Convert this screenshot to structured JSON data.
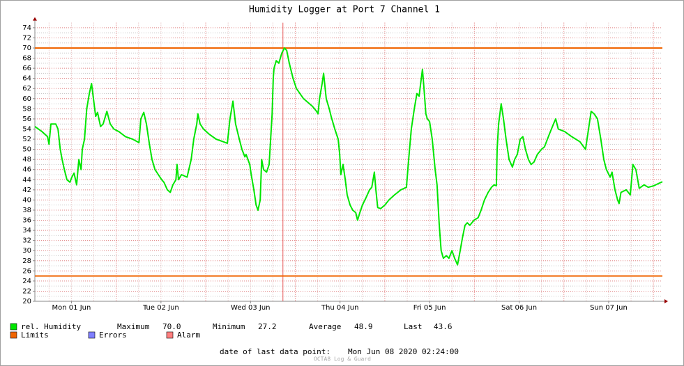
{
  "chart_data": {
    "type": "line",
    "title": "Humidity Logger at Port 7 Channel 1",
    "x": [
      2.2,
      4.1,
      5.6,
      6.0,
      6.5,
      7.8,
      8.4,
      9.0,
      9.5,
      10.1,
      10.8,
      11.6,
      12.1,
      12.7,
      13.4,
      14.0,
      14.6,
      14.9,
      15.5,
      16.1,
      16.8,
      17.4,
      17.9,
      18.5,
      19.0,
      19.8,
      20.5,
      21.5,
      22.4,
      23.4,
      24.7,
      26.5,
      28.4,
      29.7,
      30.1,
      30.6,
      31.4,
      32.1,
      32.9,
      33.6,
      34.4,
      35.3,
      36.2,
      36.8,
      37.7,
      38.5,
      39.2,
      40.0,
      40.3,
      40.7,
      41.5,
      43.0,
      44.1,
      44.8,
      45.6,
      45.9,
      46.5,
      47.4,
      48.9,
      50.8,
      52.7,
      53.8,
      54.5,
      55.3,
      56.0,
      57.0,
      57.7,
      58.5,
      58.8,
      59.8,
      60.2,
      60.9,
      61.5,
      62.0,
      62.6,
      63.0,
      63.5,
      64.3,
      65.0,
      65.8,
      66.1,
      66.3,
      66.9,
      67.6,
      68.4,
      69.1,
      69.7,
      70.4,
      71.4,
      72.3,
      74.2,
      76.6,
      77.7,
      78.1,
      78.5,
      79.2,
      79.6,
      80.3,
      81.1,
      81.6,
      82.6,
      83.5,
      83.9,
      84.2,
      84.8,
      85.4,
      85.9,
      86.7,
      87.4,
      88.2,
      88.7,
      89.3,
      90.0,
      91.0,
      91.9,
      92.5,
      93.2,
      93.6,
      94.1,
      94.9,
      96.0,
      97.1,
      98.6,
      100.3,
      101.8,
      102.4,
      103.1,
      103.9,
      104.6,
      105.2,
      105.6,
      106.1,
      106.5,
      107.0,
      107.4,
      108.0,
      108.7,
      109.5,
      110.0,
      110.6,
      111.1,
      111.7,
      112.5,
      113.2,
      114.0,
      114.7,
      115.5,
      116.2,
      116.8,
      117.5,
      118.1,
      118.8,
      119.9,
      121.0,
      121.8,
      122.7,
      123.7,
      124.6,
      125.3,
      125.9,
      126.1,
      126.5,
      127.2,
      127.8,
      128.5,
      129.3,
      130.2,
      130.8,
      131.5,
      132.3,
      133.0,
      133.7,
      134.5,
      135.2,
      136.0,
      136.9,
      138.0,
      138.8,
      140.1,
      141.2,
      141.8,
      142.5,
      144.2,
      146.1,
      148.3,
      149.8,
      151.3,
      152.1,
      153.0,
      153.9,
      154.7,
      155.4,
      156.4,
      156.9,
      157.7,
      158.4,
      158.8,
      159.3,
      160.7,
      161.8,
      162.5,
      163.3,
      164.2,
      165.5,
      166.6,
      168.1,
      169.2,
      170.4
    ],
    "series": [
      {
        "name": "rel. Humidity",
        "color": "#00e600",
        "values": [
          54.5,
          53.5,
          52.5,
          51,
          55,
          55,
          54,
          50,
          48,
          46,
          44,
          43.5,
          44.5,
          45.3,
          43,
          48,
          46,
          50,
          52,
          58,
          61,
          63,
          60,
          56.5,
          57.3,
          54.5,
          55,
          57.5,
          55,
          54,
          53.5,
          52.5,
          52,
          51.5,
          51.3,
          56,
          57.3,
          55,
          51,
          48,
          46,
          45,
          44,
          43.5,
          42,
          41.5,
          43,
          44,
          47,
          44,
          45,
          44.5,
          48,
          52,
          55,
          57,
          55,
          54,
          53,
          52,
          51.5,
          51.2,
          56,
          59.5,
          55,
          52,
          50,
          48.5,
          49,
          47,
          45,
          42,
          39,
          38,
          40,
          48,
          46,
          45.5,
          47,
          57,
          64,
          66,
          67.5,
          67,
          69,
          70,
          69.5,
          67,
          64,
          62,
          60,
          58.5,
          57.5,
          57,
          60,
          63,
          65,
          60,
          58,
          56.5,
          54,
          52,
          49,
          45,
          47,
          44,
          41,
          39,
          38,
          37.5,
          36,
          37.5,
          39,
          40.5,
          42,
          42.5,
          45.5,
          42,
          38.5,
          38.3,
          39,
          40,
          41,
          42,
          42.5,
          48,
          54,
          58,
          61,
          60.5,
          63,
          65.8,
          62,
          57,
          56,
          55.5,
          52,
          46,
          43,
          35,
          30,
          28.5,
          29,
          28.5,
          30,
          28.5,
          27.2,
          30,
          32.5,
          35,
          35.5,
          35,
          36,
          36.5,
          38,
          40,
          41.5,
          42.5,
          43,
          42.8,
          50,
          55,
          59,
          56,
          52,
          48,
          46.5,
          48,
          49,
          52,
          52.5,
          50,
          48,
          47,
          47.5,
          49,
          50,
          50.5,
          53,
          55,
          56,
          54,
          53.5,
          52.5,
          51.5,
          50,
          57.5,
          57,
          56,
          52,
          48,
          46,
          44.5,
          45.5,
          42,
          40,
          39.3,
          41.5,
          42,
          41,
          47,
          46,
          42.3,
          43,
          42.5,
          42.8,
          43.2,
          43.6
        ]
      }
    ],
    "limits": {
      "name": "Limits",
      "color": "#f06400",
      "values": [
        70,
        25
      ]
    },
    "legend_extra": [
      {
        "name": "Errors",
        "color": "#7f7fff"
      },
      {
        "name": "Alarm",
        "color": "#ff7f7f"
      }
    ],
    "stats": [
      {
        "name": "Maximum",
        "value": "70.0"
      },
      {
        "name": "Minimum",
        "value": "27.2"
      },
      {
        "name": "Average",
        "value": "48.9"
      },
      {
        "name": "Last",
        "value": "43.6"
      }
    ],
    "vrule": 68.7,
    "xlim": [
      2.2,
      170.4
    ],
    "xticks": [
      {
        "value": 12,
        "label": "Mon 01 Jun"
      },
      {
        "value": 36,
        "label": "Tue 02 Jun"
      },
      {
        "value": 60,
        "label": "Wed 03 Jun"
      },
      {
        "value": 84,
        "label": "Thu 04 Jun"
      },
      {
        "value": 108,
        "label": "Fri 05 Jun"
      },
      {
        "value": 132,
        "label": "Sat 06 Jun"
      },
      {
        "value": 156,
        "label": "Sun 07 Jun"
      }
    ],
    "ylim": [
      20,
      75
    ],
    "yticks": [
      20,
      22,
      24,
      26,
      28,
      30,
      32,
      34,
      36,
      38,
      40,
      42,
      44,
      46,
      48,
      50,
      52,
      54,
      56,
      58,
      60,
      62,
      64,
      66,
      68,
      70,
      72,
      74
    ],
    "grid": true,
    "footer": {
      "label": "date of last data point:",
      "value": "Mon Jun 08 2020 02:24:00"
    },
    "watermark": "OCTA8 Log & Guard"
  }
}
